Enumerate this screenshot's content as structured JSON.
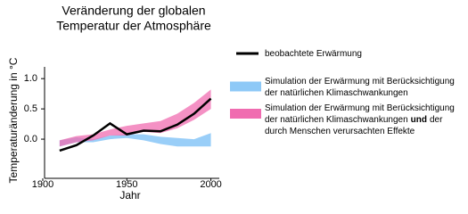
{
  "chart_data": {
    "type": "line",
    "title": [
      "Veränderung der globalen",
      "Temperatur der Atmosphäre"
    ],
    "y_label": "Temperaturänderung in °C",
    "x_label": "Jahr",
    "x": [
      1910,
      1920,
      1930,
      1940,
      1950,
      1960,
      1970,
      1980,
      1990,
      2000
    ],
    "xlim": [
      1900,
      2005
    ],
    "xticks": [
      1900,
      1950,
      2000
    ],
    "ylim": [
      -0.6,
      1.2
    ],
    "yticks": [
      {
        "value": 0,
        "label": "0.0"
      },
      {
        "value": 0.5,
        "label": "0.5"
      },
      {
        "value": 1,
        "label": "1.0"
      }
    ],
    "series": [
      {
        "name": [
          [
            "beobachtete Erwärmung"
          ]
        ],
        "color": "#000000",
        "values": [
          -0.19,
          -0.1,
          0.06,
          0.26,
          0.08,
          0.14,
          0.13,
          0.24,
          0.42,
          0.67
        ]
      },
      {
        "name": [
          [
            "Simulation der Erwärmung mit Berücksichtigung"
          ],
          [
            "der natürlichen Klimaschwankungen"
          ]
        ],
        "color": "#8ec9f7",
        "text_color": "#4a90d0",
        "lower": [
          -0.12,
          -0.05,
          -0.05,
          0.0,
          0.02,
          -0.02,
          -0.08,
          -0.12,
          -0.12,
          -0.12
        ],
        "upper": [
          -0.02,
          0.03,
          0.0,
          0.06,
          0.08,
          0.08,
          0.04,
          0.02,
          0.0,
          0.1
        ]
      },
      {
        "name": [
          [
            "Simulation der Erwärmung mit Berücksichtigung"
          ],
          [
            "der natürlichen Klimaschwankungen",
            {
              "text": "und",
              "bold": true
            },
            "der"
          ],
          [
            "durch Menschen verursachten Effekte"
          ]
        ],
        "color": "#f06cb0",
        "text_color": "#d8448f",
        "lower": [
          -0.12,
          -0.05,
          -0.02,
          0.06,
          0.06,
          0.12,
          0.1,
          0.18,
          0.32,
          0.5
        ],
        "upper": [
          -0.02,
          0.05,
          0.08,
          0.16,
          0.22,
          0.26,
          0.3,
          0.42,
          0.6,
          0.82
        ]
      }
    ]
  }
}
